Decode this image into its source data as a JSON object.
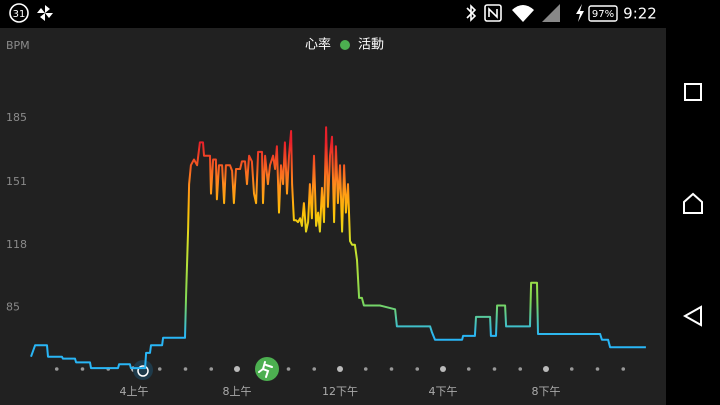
{
  "status_bar": {
    "calendar_day": "31",
    "battery": "97%",
    "time": "9:22"
  },
  "chart_data": {
    "type": "line",
    "y_label": "BPM",
    "legend": [
      {
        "name": "心率"
      },
      {
        "name": "活動",
        "color": "#4caf50"
      }
    ],
    "x": [
      0,
      0.16,
      0.62,
      0.66,
      1.2,
      1.24,
      1.71,
      1.75,
      2.29,
      2.33,
      3.38,
      3.42,
      3.84,
      3.88,
      4.43,
      4.47,
      4.62,
      4.66,
      5.09,
      5.13,
      5.98,
      6.02,
      6.1,
      6.14,
      6.21,
      6.33,
      6.45,
      6.56,
      6.68,
      6.72,
      6.87,
      6.95,
      6.99,
      7.07,
      7.18,
      7.22,
      7.3,
      7.42,
      7.5,
      7.57,
      7.73,
      7.81,
      7.88,
      7.96,
      8.12,
      8.19,
      8.31,
      8.39,
      8.47,
      8.58,
      8.66,
      8.74,
      8.82,
      8.97,
      9.01,
      9.09,
      9.2,
      9.28,
      9.4,
      9.48,
      9.55,
      9.63,
      9.71,
      9.79,
      9.86,
      9.94,
      10.02,
      10.1,
      10.14,
      10.21,
      10.29,
      10.37,
      10.45,
      10.52,
      10.6,
      10.68,
      10.76,
      10.83,
      10.91,
      10.99,
      11.07,
      11.15,
      11.22,
      11.3,
      11.38,
      11.46,
      11.53,
      11.61,
      11.69,
      11.77,
      11.84,
      11.92,
      12,
      12.08,
      12.16,
      12.23,
      12.31,
      12.39,
      12.47,
      12.58,
      12.66,
      12.74,
      12.85,
      12.93,
      13.55,
      14.14,
      14.21,
      15.5,
      15.57,
      15.69,
      16.74,
      16.78,
      17.24,
      17.28,
      17.83,
      17.86,
      18.06,
      18.1,
      18.41,
      18.45,
      19.38,
      19.42,
      19.65,
      19.69,
      22.1,
      22.17,
      22.41,
      22.49,
      23.88
    ],
    "series": [
      {
        "name": "心率",
        "values": [
          59,
          65,
          65,
          59,
          59,
          58,
          58,
          56,
          56,
          53,
          53,
          55,
          55,
          53,
          53,
          61,
          61,
          65,
          65,
          69,
          69,
          90,
          126,
          150,
          160,
          163,
          160,
          172,
          172,
          165,
          165,
          165,
          145,
          163,
          163,
          142,
          160,
          160,
          140,
          160,
          160,
          157,
          140,
          158,
          158,
          162,
          162,
          150,
          165,
          162,
          145,
          140,
          167,
          167,
          140,
          165,
          150,
          160,
          165,
          158,
          170,
          135,
          160,
          150,
          172,
          145,
          165,
          178,
          150,
          131,
          131,
          130,
          132,
          128,
          140,
          125,
          130,
          150,
          132,
          165,
          128,
          135,
          125,
          148,
          130,
          180,
          138,
          165,
          175,
          130,
          170,
          140,
          160,
          125,
          160,
          135,
          150,
          120,
          118,
          118,
          110,
          90,
          90,
          86,
          86,
          84,
          75,
          75,
          72,
          68,
          68,
          70,
          70,
          80,
          80,
          70,
          70,
          86,
          86,
          75,
          75,
          98,
          98,
          71,
          71,
          68,
          68,
          64,
          64
        ]
      }
    ],
    "color_scale": [
      {
        "value": 70,
        "color": "#29b6f6"
      },
      {
        "value": 88,
        "color": "#7ed957"
      },
      {
        "value": 118,
        "color": "#cfe22a"
      },
      {
        "value": 135,
        "color": "#ffc107"
      },
      {
        "value": 150,
        "color": "#ff8a1c"
      },
      {
        "value": 172,
        "color": "#e8202a"
      }
    ],
    "xlim": [
      0,
      24
    ],
    "ylim": [
      52,
      226
    ],
    "xticks": [
      {
        "value": 4,
        "label": "4上午"
      },
      {
        "value": 8,
        "label": "8上午"
      },
      {
        "value": 12,
        "label": "12下午"
      },
      {
        "value": 16,
        "label": "4下午"
      },
      {
        "value": 20,
        "label": "8下午"
      }
    ],
    "yticks": [
      85,
      118,
      151,
      185
    ],
    "grid": false
  }
}
